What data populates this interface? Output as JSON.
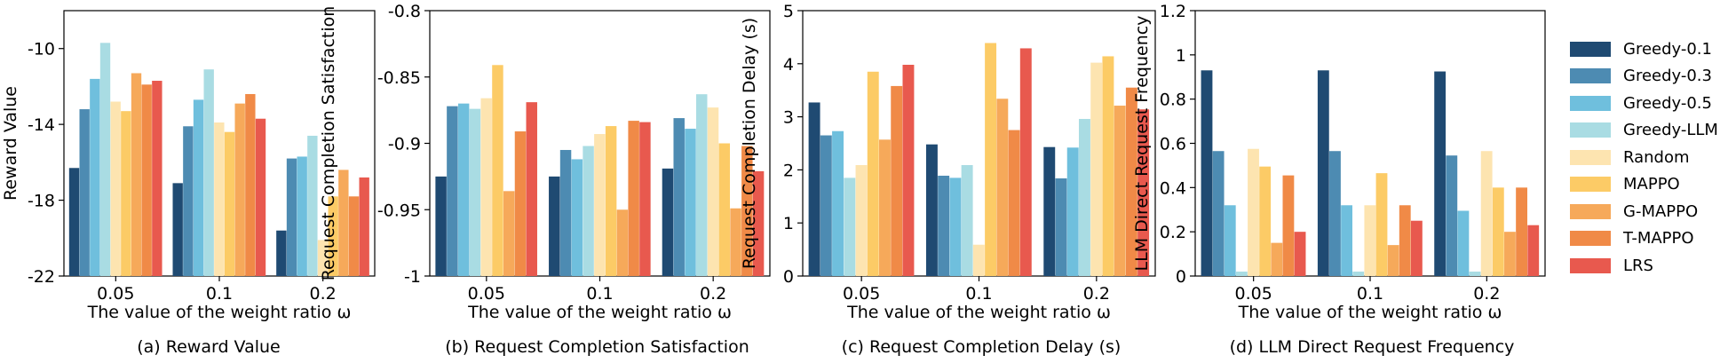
{
  "legend": [
    {
      "name": "Greedy-0.1",
      "color": "#1f4a72"
    },
    {
      "name": "Greedy-0.3",
      "color": "#4d8bb2"
    },
    {
      "name": "Greedy-0.5",
      "color": "#6fbfdd"
    },
    {
      "name": "Greedy-LLM",
      "color": "#a9dce3"
    },
    {
      "name": "Random",
      "color": "#fde4b0"
    },
    {
      "name": "MAPPO",
      "color": "#fccb66"
    },
    {
      "name": "G-MAPPO",
      "color": "#f6a95a"
    },
    {
      "name": "T-MAPPO",
      "color": "#f08a47"
    },
    {
      "name": "LRS",
      "color": "#e8594e"
    }
  ],
  "captions": [
    "(a) Reward Value",
    "(b) Request Completion Satisfaction",
    "(c) Request Completion Delay (s)",
    "(d) LLM Direct Request Frequency"
  ],
  "chart_data": [
    {
      "type": "bar",
      "xlabel": "The value of the weight ratio ω",
      "ylabel": "Reward Value",
      "categories": [
        "0.05",
        "0.1",
        "0.2"
      ],
      "ylim": [
        -22,
        -8
      ],
      "yticks": [
        -22,
        -18,
        -14,
        -10
      ],
      "ytick_labels": [
        "-22",
        "-18",
        "-14",
        "-10"
      ],
      "series": [
        {
          "name": "Greedy-0.1",
          "values": [
            -16.3,
            -17.1,
            -19.6
          ]
        },
        {
          "name": "Greedy-0.3",
          "values": [
            -13.2,
            -14.1,
            -15.8
          ]
        },
        {
          "name": "Greedy-0.5",
          "values": [
            -11.6,
            -12.7,
            -15.7
          ]
        },
        {
          "name": "Greedy-LLM",
          "values": [
            -9.7,
            -11.1,
            -14.6
          ]
        },
        {
          "name": "Random",
          "values": [
            -12.8,
            -13.9,
            -20.1
          ]
        },
        {
          "name": "MAPPO",
          "values": [
            -13.3,
            -14.4,
            -17.8
          ]
        },
        {
          "name": "G-MAPPO",
          "values": [
            -11.3,
            -12.9,
            -16.4
          ]
        },
        {
          "name": "T-MAPPO",
          "values": [
            -11.9,
            -12.4,
            -17.8
          ]
        },
        {
          "name": "LRS",
          "values": [
            -11.7,
            -13.7,
            -16.8
          ]
        }
      ]
    },
    {
      "type": "bar",
      "xlabel": "The value of the weight ratio ω",
      "ylabel": "Request Completion Satisfaction",
      "categories": [
        "0.05",
        "0.1",
        "0.2"
      ],
      "ylim": [
        -1,
        -0.8
      ],
      "yticks": [
        -1,
        -0.95,
        -0.9,
        -0.85,
        -0.8
      ],
      "ytick_labels": [
        "-1",
        "-0.95",
        "-0.9",
        "-0.85",
        "-0.8"
      ],
      "series": [
        {
          "name": "Greedy-0.1",
          "values": [
            -0.925,
            -0.925,
            -0.919
          ]
        },
        {
          "name": "Greedy-0.3",
          "values": [
            -0.872,
            -0.905,
            -0.881
          ]
        },
        {
          "name": "Greedy-0.5",
          "values": [
            -0.87,
            -0.912,
            -0.889
          ]
        },
        {
          "name": "Greedy-LLM",
          "values": [
            -0.874,
            -0.902,
            -0.863
          ]
        },
        {
          "name": "Random",
          "values": [
            -0.866,
            -0.893,
            -0.873
          ]
        },
        {
          "name": "MAPPO",
          "values": [
            -0.841,
            -0.887,
            -0.9
          ]
        },
        {
          "name": "G-MAPPO",
          "values": [
            -0.936,
            -0.95,
            -0.949
          ]
        },
        {
          "name": "T-MAPPO",
          "values": [
            -0.891,
            -0.883,
            -0.902
          ]
        },
        {
          "name": "LRS",
          "values": [
            -0.869,
            -0.884,
            -0.921
          ]
        }
      ]
    },
    {
      "type": "bar",
      "xlabel": "The value of the weight ratio ω",
      "ylabel": "Request Completion Delay (s)",
      "categories": [
        "0.05",
        "0.1",
        "0.2"
      ],
      "ylim": [
        0,
        5
      ],
      "yticks": [
        0,
        1,
        2,
        3,
        4,
        5
      ],
      "ytick_labels": [
        "0",
        "1",
        "2",
        "3",
        "4",
        "5"
      ],
      "series": [
        {
          "name": "Greedy-0.1",
          "values": [
            3.27,
            2.48,
            2.43
          ]
        },
        {
          "name": "Greedy-0.3",
          "values": [
            2.65,
            1.89,
            1.84
          ]
        },
        {
          "name": "Greedy-0.5",
          "values": [
            2.73,
            1.85,
            2.42
          ]
        },
        {
          "name": "Greedy-LLM",
          "values": [
            1.85,
            2.09,
            2.96
          ]
        },
        {
          "name": "Random",
          "values": [
            2.09,
            0.59,
            4.02
          ]
        },
        {
          "name": "MAPPO",
          "values": [
            3.85,
            4.39,
            4.14
          ]
        },
        {
          "name": "G-MAPPO",
          "values": [
            2.57,
            3.34,
            3.21
          ]
        },
        {
          "name": "T-MAPPO",
          "values": [
            3.58,
            2.75,
            3.55
          ]
        },
        {
          "name": "LRS",
          "values": [
            3.98,
            4.29,
            3.14
          ]
        }
      ]
    },
    {
      "type": "bar",
      "xlabel": "The value of the weight ratio ω",
      "ylabel": "LLM Direct Request Frequency",
      "categories": [
        "0.05",
        "0.1",
        "0.2"
      ],
      "ylim": [
        0,
        1.2
      ],
      "yticks": [
        0,
        0.2,
        0.4,
        0.6,
        0.8,
        1,
        1.2
      ],
      "ytick_labels": [
        "0",
        "0.2",
        "0.4",
        "0.6",
        "0.8",
        "1",
        "1.2"
      ],
      "series": [
        {
          "name": "Greedy-0.1",
          "values": [
            0.93,
            0.93,
            0.925
          ]
        },
        {
          "name": "Greedy-0.3",
          "values": [
            0.565,
            0.565,
            0.545
          ]
        },
        {
          "name": "Greedy-0.5",
          "values": [
            0.32,
            0.32,
            0.295
          ]
        },
        {
          "name": "Greedy-LLM",
          "values": [
            0.02,
            0.02,
            0.02
          ]
        },
        {
          "name": "Random",
          "values": [
            0.575,
            0.32,
            0.565
          ]
        },
        {
          "name": "MAPPO",
          "values": [
            0.495,
            0.465,
            0.4
          ]
        },
        {
          "name": "G-MAPPO",
          "values": [
            0.15,
            0.14,
            0.2
          ]
        },
        {
          "name": "T-MAPPO",
          "values": [
            0.455,
            0.32,
            0.4
          ]
        },
        {
          "name": "LRS",
          "values": [
            0.2,
            0.25,
            0.23
          ]
        }
      ]
    }
  ]
}
